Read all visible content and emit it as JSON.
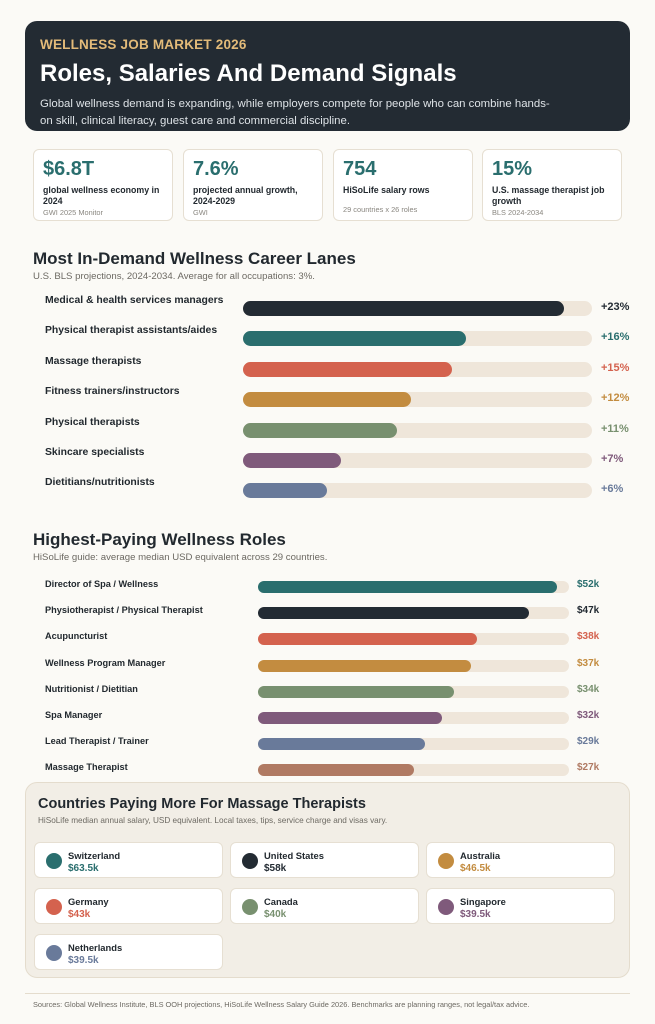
{
  "hero": {
    "eyebrow": "WELLNESS JOB MARKET 2026",
    "title": "Roles, Salaries And Demand Signals",
    "subtitle": "Global wellness demand is expanding, while employers compete for people who can combine hands-on skill, clinical literacy, guest care and commercial discipline."
  },
  "stats": [
    {
      "value": "$6.8T",
      "label": "global wellness economy in 2024",
      "source": "GWI 2025 Monitor"
    },
    {
      "value": "7.6%",
      "label": "projected annual growth, 2024-2029",
      "source": "GWI"
    },
    {
      "value": "754",
      "label": "HiSoLife salary rows",
      "source": "29 countries x 26 roles"
    },
    {
      "value": "15%",
      "label": "U.S. massage therapist job growth",
      "source": "BLS 2024-2034"
    }
  ],
  "demand": {
    "title": "Most In-Demand Wellness Career Lanes",
    "subtitle": "U.S. BLS projections, 2024-2034. Average for all occupations: 3%."
  },
  "pay": {
    "title": "Highest-Paying Wellness Roles",
    "subtitle": "HiSoLife guide: average median USD equivalent across 29 countries."
  },
  "countries": {
    "title": "Countries Paying More For Massage Therapists",
    "subtitle": "HiSoLife median annual salary, USD equivalent. Local taxes, tips, service charge and visas vary.",
    "items": [
      {
        "name": "Switzerland",
        "salary": "$63.5k",
        "color": "#2a6e6e"
      },
      {
        "name": "United States",
        "salary": "$58k",
        "color": "#232b33"
      },
      {
        "name": "Australia",
        "salary": "$46.5k",
        "color": "#c38c40"
      },
      {
        "name": "Germany",
        "salary": "$43k",
        "color": "#d4624e"
      },
      {
        "name": "Canada",
        "salary": "$40k",
        "color": "#78906f"
      },
      {
        "name": "Singapore",
        "salary": "$39.5k",
        "color": "#7f5a7b"
      },
      {
        "name": "Netherlands",
        "salary": "$39.5k",
        "color": "#697a9a"
      }
    ]
  },
  "footer": "Sources: Global Wellness Institute, BLS OOH projections, HiSoLife Wellness Salary Guide 2026. Benchmarks are planning ranges, not legal/tax advice.",
  "chart_data": [
    {
      "type": "bar",
      "orientation": "horizontal",
      "title": "Most In-Demand Wellness Career Lanes",
      "categories": [
        "Medical & health services managers",
        "Physical therapist assistants/aides",
        "Massage therapists",
        "Fitness trainers/instructors",
        "Physical therapists",
        "Skincare specialists",
        "Dietitians/nutritionists"
      ],
      "values": [
        23,
        16,
        15,
        12,
        11,
        7,
        6
      ],
      "value_labels": [
        "+23%",
        "+16%",
        "+15%",
        "+12%",
        "+11%",
        "+7%",
        "+6%"
      ],
      "colors": [
        "#232b33",
        "#2a6e6e",
        "#d4624e",
        "#c38c40",
        "#78906f",
        "#7f5a7b",
        "#697a9a"
      ],
      "xlim": [
        0,
        25
      ]
    },
    {
      "type": "bar",
      "orientation": "horizontal",
      "title": "Highest-Paying Wellness Roles",
      "categories": [
        "Director of Spa / Wellness",
        "Physiotherapist / Physical Therapist",
        "Acupuncturist",
        "Wellness Program Manager",
        "Nutritionist / Dietitian",
        "Spa Manager",
        "Lead Therapist / Trainer",
        "Massage Therapist"
      ],
      "values": [
        52,
        47,
        38,
        37,
        34,
        32,
        29,
        27
      ],
      "value_labels": [
        "$52k",
        "$47k",
        "$38k",
        "$37k",
        "$34k",
        "$32k",
        "$29k",
        "$27k"
      ],
      "colors": [
        "#2a6e6e",
        "#232b33",
        "#d4624e",
        "#c38c40",
        "#78906f",
        "#7f5a7b",
        "#697a9a",
        "#b07a63"
      ],
      "xlim": [
        0,
        54
      ]
    }
  ]
}
